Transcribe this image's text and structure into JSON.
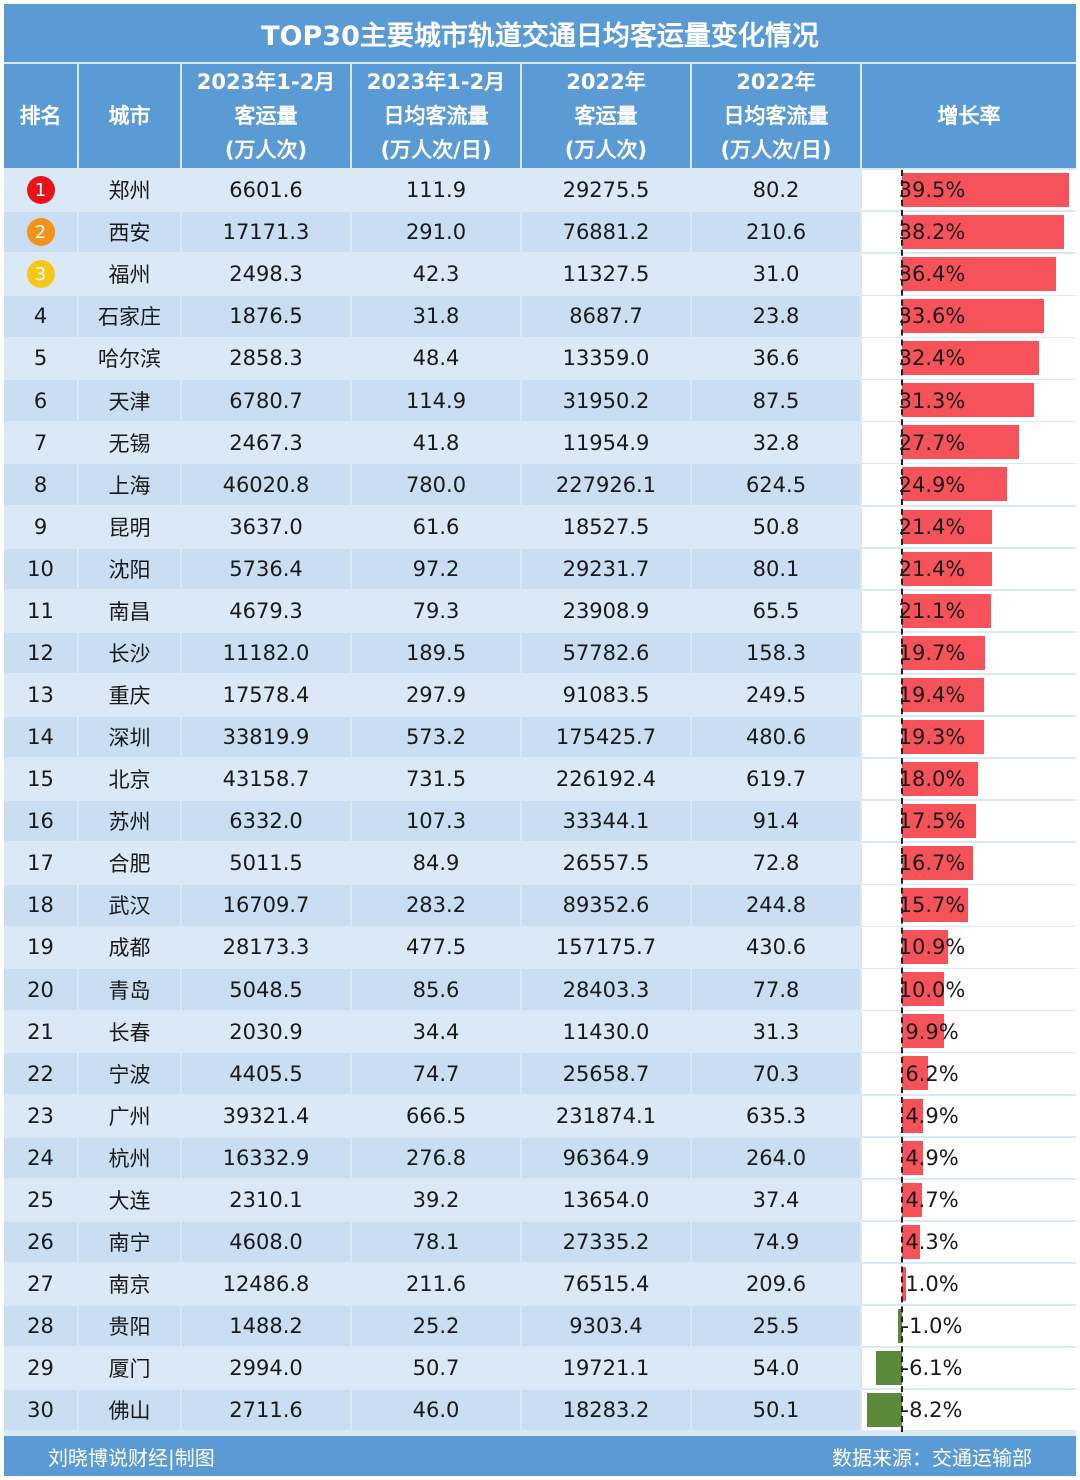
{
  "title": "TOP30主要城市轨道交通日均客运量变化情况",
  "headers": {
    "rank": "排名",
    "city": "城市",
    "c1": [
      "2023年1-2月",
      "客运量",
      "(万人次)"
    ],
    "c2": [
      "2023年1-2月",
      "日均客流量",
      "(万人次/日)"
    ],
    "c3": [
      "2022年",
      "客运量",
      "(万人次)"
    ],
    "c4": [
      "2022年",
      "日均客流量",
      "(万人次/日)"
    ],
    "growth": "增长率"
  },
  "medal_colors": [
    "#e8141d",
    "#f39215",
    "#f5c71a"
  ],
  "colors": {
    "header": "#5b9bd5",
    "positive_bar": "#f6525a",
    "negative_bar": "#5a8a3a"
  },
  "footer": {
    "left": "刘晓博说财经|制图",
    "right": "数据来源：交通运输部"
  },
  "chart_data": {
    "type": "table",
    "title": "TOP30主要城市轨道交通日均客运量变化情况",
    "growth_range": [
      -10,
      40
    ],
    "rows": [
      {
        "rank": "1",
        "city": "郑州",
        "v2023": "6601.6",
        "d2023": "111.9",
        "v2022": "29275.5",
        "d2022": "80.2",
        "growth": 39.5,
        "growth_label": "39.5%"
      },
      {
        "rank": "2",
        "city": "西安",
        "v2023": "17171.3",
        "d2023": "291.0",
        "v2022": "76881.2",
        "d2022": "210.6",
        "growth": 38.2,
        "growth_label": "38.2%"
      },
      {
        "rank": "3",
        "city": "福州",
        "v2023": "2498.3",
        "d2023": "42.3",
        "v2022": "11327.5",
        "d2022": "31.0",
        "growth": 36.4,
        "growth_label": "36.4%"
      },
      {
        "rank": "4",
        "city": "石家庄",
        "v2023": "1876.5",
        "d2023": "31.8",
        "v2022": "8687.7",
        "d2022": "23.8",
        "growth": 33.6,
        "growth_label": "33.6%"
      },
      {
        "rank": "5",
        "city": "哈尔滨",
        "v2023": "2858.3",
        "d2023": "48.4",
        "v2022": "13359.0",
        "d2022": "36.6",
        "growth": 32.4,
        "growth_label": "32.4%"
      },
      {
        "rank": "6",
        "city": "天津",
        "v2023": "6780.7",
        "d2023": "114.9",
        "v2022": "31950.2",
        "d2022": "87.5",
        "growth": 31.3,
        "growth_label": "31.3%"
      },
      {
        "rank": "7",
        "city": "无锡",
        "v2023": "2467.3",
        "d2023": "41.8",
        "v2022": "11954.9",
        "d2022": "32.8",
        "growth": 27.7,
        "growth_label": "27.7%"
      },
      {
        "rank": "8",
        "city": "上海",
        "v2023": "46020.8",
        "d2023": "780.0",
        "v2022": "227926.1",
        "d2022": "624.5",
        "growth": 24.9,
        "growth_label": "24.9%"
      },
      {
        "rank": "9",
        "city": "昆明",
        "v2023": "3637.0",
        "d2023": "61.6",
        "v2022": "18527.5",
        "d2022": "50.8",
        "growth": 21.4,
        "growth_label": "21.4%"
      },
      {
        "rank": "10",
        "city": "沈阳",
        "v2023": "5736.4",
        "d2023": "97.2",
        "v2022": "29231.7",
        "d2022": "80.1",
        "growth": 21.4,
        "growth_label": "21.4%"
      },
      {
        "rank": "11",
        "city": "南昌",
        "v2023": "4679.3",
        "d2023": "79.3",
        "v2022": "23908.9",
        "d2022": "65.5",
        "growth": 21.1,
        "growth_label": "21.1%"
      },
      {
        "rank": "12",
        "city": "长沙",
        "v2023": "11182.0",
        "d2023": "189.5",
        "v2022": "57782.6",
        "d2022": "158.3",
        "growth": 19.7,
        "growth_label": "19.7%"
      },
      {
        "rank": "13",
        "city": "重庆",
        "v2023": "17578.4",
        "d2023": "297.9",
        "v2022": "91083.5",
        "d2022": "249.5",
        "growth": 19.4,
        "growth_label": "19.4%"
      },
      {
        "rank": "14",
        "city": "深圳",
        "v2023": "33819.9",
        "d2023": "573.2",
        "v2022": "175425.7",
        "d2022": "480.6",
        "growth": 19.3,
        "growth_label": "19.3%"
      },
      {
        "rank": "15",
        "city": "北京",
        "v2023": "43158.7",
        "d2023": "731.5",
        "v2022": "226192.4",
        "d2022": "619.7",
        "growth": 18.0,
        "growth_label": "18.0%"
      },
      {
        "rank": "16",
        "city": "苏州",
        "v2023": "6332.0",
        "d2023": "107.3",
        "v2022": "33344.1",
        "d2022": "91.4",
        "growth": 17.5,
        "growth_label": "17.5%"
      },
      {
        "rank": "17",
        "city": "合肥",
        "v2023": "5011.5",
        "d2023": "84.9",
        "v2022": "26557.5",
        "d2022": "72.8",
        "growth": 16.7,
        "growth_label": "16.7%"
      },
      {
        "rank": "18",
        "city": "武汉",
        "v2023": "16709.7",
        "d2023": "283.2",
        "v2022": "89352.6",
        "d2022": "244.8",
        "growth": 15.7,
        "growth_label": "15.7%"
      },
      {
        "rank": "19",
        "city": "成都",
        "v2023": "28173.3",
        "d2023": "477.5",
        "v2022": "157175.7",
        "d2022": "430.6",
        "growth": 10.9,
        "growth_label": "10.9%"
      },
      {
        "rank": "20",
        "city": "青岛",
        "v2023": "5048.5",
        "d2023": "85.6",
        "v2022": "28403.3",
        "d2022": "77.8",
        "growth": 10.0,
        "growth_label": "10.0%"
      },
      {
        "rank": "21",
        "city": "长春",
        "v2023": "2030.9",
        "d2023": "34.4",
        "v2022": "11430.0",
        "d2022": "31.3",
        "growth": 9.9,
        "growth_label": "9.9%"
      },
      {
        "rank": "22",
        "city": "宁波",
        "v2023": "4405.5",
        "d2023": "74.7",
        "v2022": "25658.7",
        "d2022": "70.3",
        "growth": 6.2,
        "growth_label": "6.2%"
      },
      {
        "rank": "23",
        "city": "广州",
        "v2023": "39321.4",
        "d2023": "666.5",
        "v2022": "231874.1",
        "d2022": "635.3",
        "growth": 4.9,
        "growth_label": "4.9%"
      },
      {
        "rank": "24",
        "city": "杭州",
        "v2023": "16332.9",
        "d2023": "276.8",
        "v2022": "96364.9",
        "d2022": "264.0",
        "growth": 4.9,
        "growth_label": "4.9%"
      },
      {
        "rank": "25",
        "city": "大连",
        "v2023": "2310.1",
        "d2023": "39.2",
        "v2022": "13654.0",
        "d2022": "37.4",
        "growth": 4.7,
        "growth_label": "4.7%"
      },
      {
        "rank": "26",
        "city": "南宁",
        "v2023": "4608.0",
        "d2023": "78.1",
        "v2022": "27335.2",
        "d2022": "74.9",
        "growth": 4.3,
        "growth_label": "4.3%"
      },
      {
        "rank": "27",
        "city": "南京",
        "v2023": "12486.8",
        "d2023": "211.6",
        "v2022": "76515.4",
        "d2022": "209.6",
        "growth": 1.0,
        "growth_label": "1.0%"
      },
      {
        "rank": "28",
        "city": "贵阳",
        "v2023": "1488.2",
        "d2023": "25.2",
        "v2022": "9303.4",
        "d2022": "25.5",
        "growth": -1.0,
        "growth_label": "-1.0%"
      },
      {
        "rank": "29",
        "city": "厦门",
        "v2023": "2994.0",
        "d2023": "50.7",
        "v2022": "19721.1",
        "d2022": "54.0",
        "growth": -6.1,
        "growth_label": "-6.1%"
      },
      {
        "rank": "30",
        "city": "佛山",
        "v2023": "2711.6",
        "d2023": "46.0",
        "v2022": "18283.2",
        "d2022": "50.1",
        "growth": -8.2,
        "growth_label": "-8.2%"
      }
    ]
  }
}
